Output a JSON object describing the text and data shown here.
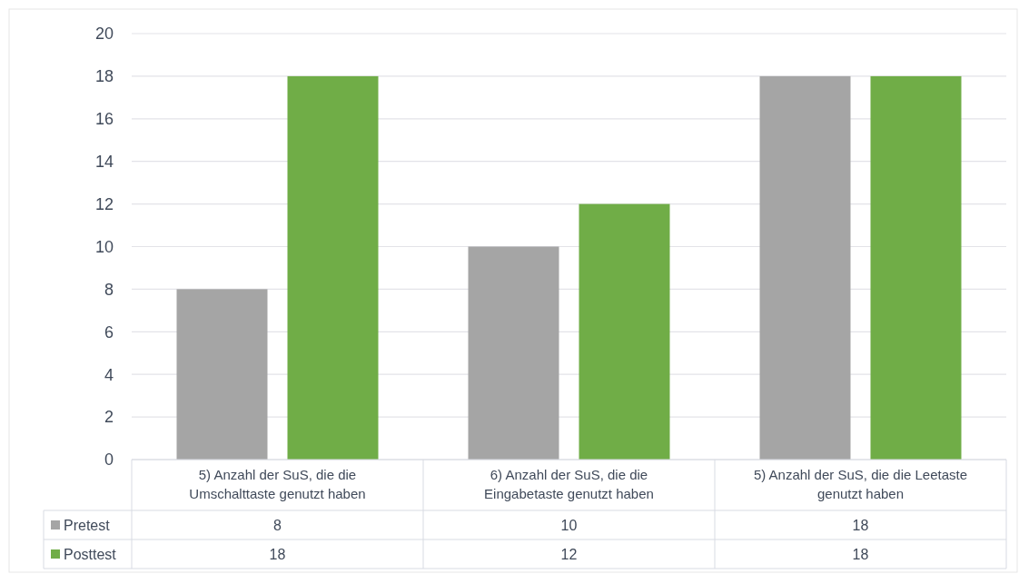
{
  "chart_data": {
    "type": "bar",
    "categories": [
      "5) Anzahl der SuS, die die Umschalttaste genutzt haben",
      "6) Anzahl der SuS, die die Eingabetaste genutzt haben",
      "5) Anzahl der SuS, die die Leetaste genutzt haben"
    ],
    "series": [
      {
        "name": "Pretest",
        "color": "#a5a5a5",
        "values": [
          8,
          10,
          18
        ]
      },
      {
        "name": "Posttest",
        "color": "#70ad47",
        "values": [
          18,
          12,
          18
        ]
      }
    ],
    "ylim": [
      0,
      20
    ],
    "yticks": [
      0,
      2,
      4,
      6,
      8,
      10,
      12,
      14,
      16,
      18,
      20
    ],
    "grid": "y",
    "data_labels": true,
    "legend": "bottom"
  }
}
